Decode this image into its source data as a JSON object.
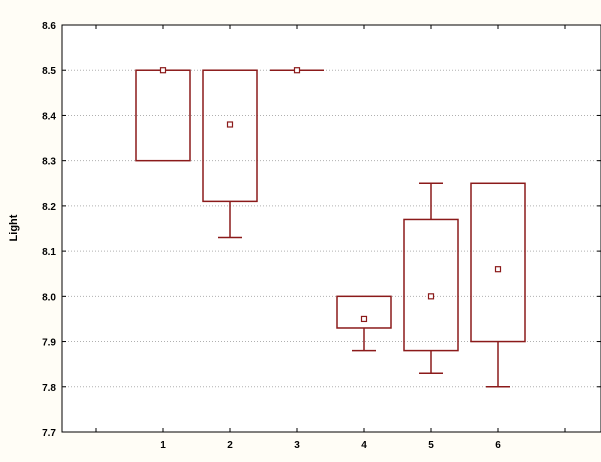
{
  "chart_data": {
    "type": "box",
    "ylabel": "Light",
    "ylim": [
      7.7,
      8.6
    ],
    "yticks": [
      7.7,
      7.8,
      7.9,
      8.0,
      8.1,
      8.2,
      8.3,
      8.4,
      8.5,
      8.6
    ],
    "ytick_labels": [
      "7.7",
      "7.8",
      "7.9",
      "8.0",
      "8.1",
      "8.2",
      "8.3",
      "8.4",
      "8.5",
      "8.6"
    ],
    "categories": [
      "1",
      "2",
      "3",
      "4",
      "5",
      "6"
    ],
    "grid": true,
    "colors": {
      "box": "#8b1a1a",
      "grid": "#b0b0b0",
      "plot_bg": "#ffffff",
      "page_bg": "#fffdf6"
    },
    "boxes": [
      {
        "category": "1",
        "whisker_low": 8.3,
        "q1": 8.3,
        "median": 8.5,
        "q3": 8.5,
        "whisker_high": 8.5
      },
      {
        "category": "2",
        "whisker_low": 8.13,
        "q1": 8.21,
        "median": 8.38,
        "q3": 8.5,
        "whisker_high": 8.5
      },
      {
        "category": "3",
        "whisker_low": 8.5,
        "q1": 8.5,
        "median": 8.5,
        "q3": 8.5,
        "whisker_high": 8.5
      },
      {
        "category": "4",
        "whisker_low": 7.88,
        "q1": 7.93,
        "median": 7.95,
        "q3": 8.0,
        "whisker_high": 8.0
      },
      {
        "category": "5",
        "whisker_low": 7.83,
        "q1": 7.88,
        "median": 8.0,
        "q3": 8.17,
        "whisker_high": 8.25
      },
      {
        "category": "6",
        "whisker_low": 7.8,
        "q1": 7.9,
        "median": 8.06,
        "q3": 8.25,
        "whisker_high": 8.25
      }
    ]
  }
}
